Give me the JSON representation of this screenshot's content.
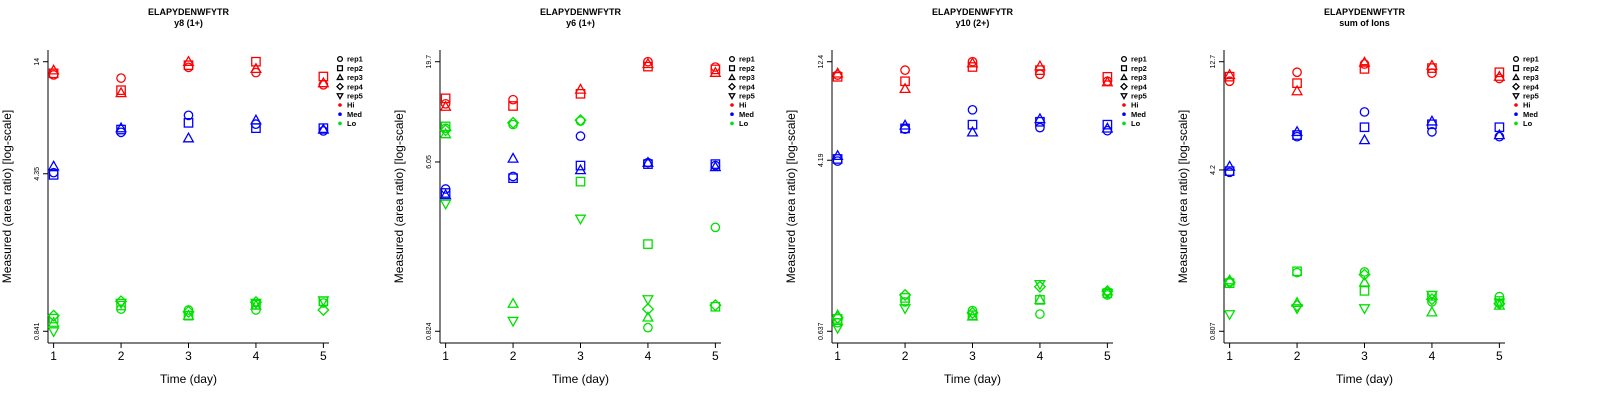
{
  "figure": {
    "legend_entries": [
      {
        "label": "rep1",
        "marker": "circle"
      },
      {
        "label": "rep2",
        "marker": "square"
      },
      {
        "label": "rep3",
        "marker": "triangle-up"
      },
      {
        "label": "rep4",
        "marker": "diamond"
      },
      {
        "label": "rep5",
        "marker": "triangle-down"
      },
      {
        "label": "Hi",
        "marker": "dot",
        "color": "#ff0000"
      },
      {
        "label": "Med",
        "marker": "dot",
        "color": "#0000ff"
      },
      {
        "label": "Lo",
        "marker": "dot",
        "color": "#00e000"
      }
    ],
    "group_colors": {
      "Hi": "#ff0000",
      "Med": "#0000ff",
      "Lo": "#00e000"
    }
  },
  "chart_data": [
    {
      "type": "scatter",
      "title": "ELAPYDENWFYTR",
      "subtitle": "y8 (1+)",
      "xlabel": "Time (day)",
      "ylabel": "Measured (area ratio) [log-scale]",
      "log_y": true,
      "x_ticks": [
        "1",
        "2",
        "3",
        "4",
        "5"
      ],
      "y_ticks": [
        "14",
        "4.35",
        "0.841"
      ],
      "ylim": [
        0.841,
        14
      ],
      "legend": "right",
      "series": [
        {
          "group": "Hi",
          "x": [
            1,
            1,
            1,
            2,
            2,
            2,
            3,
            3,
            3,
            4,
            4,
            4,
            5,
            5,
            5
          ],
          "y": [
            12.2,
            12.4,
            12.8,
            11.8,
            10.4,
            10.1,
            14.0,
            13.5,
            13.2,
            14.0,
            13.0,
            12.5,
            12.0,
            11.2,
            11.0
          ],
          "reps": [
            "rep1",
            "rep2",
            "rep3",
            "rep1",
            "rep2",
            "rep3",
            "rep3",
            "rep2",
            "rep1",
            "rep2",
            "rep3",
            "rep1",
            "rep2",
            "rep3",
            "rep1"
          ]
        },
        {
          "group": "Med",
          "x": [
            1,
            1,
            1,
            2,
            2,
            2,
            3,
            3,
            3,
            4,
            4,
            4,
            5,
            5,
            5
          ],
          "y": [
            4.4,
            4.3,
            4.7,
            6.7,
            6.9,
            7.0,
            8.0,
            7.4,
            6.3,
            7.3,
            7.6,
            7.0,
            6.8,
            7.0,
            6.9
          ],
          "reps": [
            "rep1",
            "rep2",
            "rep3",
            "rep1",
            "rep2",
            "rep3",
            "rep1",
            "rep2",
            "rep3",
            "rep1",
            "rep3",
            "rep2",
            "rep1",
            "rep2",
            "rep3"
          ]
        },
        {
          "group": "Lo",
          "x": [
            1,
            1,
            1,
            1,
            2,
            2,
            2,
            2,
            3,
            3,
            3,
            3,
            4,
            4,
            4,
            4,
            4,
            5,
            5,
            5,
            5
          ],
          "y": [
            0.96,
            0.92,
            0.99,
            0.84,
            1.15,
            1.13,
            1.1,
            1.06,
            1.05,
            1.03,
            0.99,
            0.99,
            1.05,
            1.1,
            1.14,
            1.13,
            1.11,
            1.15,
            1.13,
            1.16,
            1.05
          ],
          "reps": [
            "rep2",
            "rep3",
            "rep4",
            "rep5",
            "rep4",
            "rep5",
            "rep2",
            "rep1",
            "rep1",
            "rep4",
            "rep2",
            "rep3",
            "rep1",
            "rep3",
            "rep4",
            "rep5",
            "rep2",
            "rep2",
            "rep1",
            "rep5",
            "rep4"
          ]
        }
      ]
    },
    {
      "type": "scatter",
      "title": "ELAPYDENWFYTR",
      "subtitle": "y6 (1+)",
      "xlabel": "Time (day)",
      "ylabel": "Measured (area ratio) [log-scale]",
      "log_y": true,
      "x_ticks": [
        "1",
        "2",
        "3",
        "4",
        "5"
      ],
      "y_ticks": [
        "19.7",
        "6.05",
        "0.824"
      ],
      "ylim": [
        0.824,
        19.7
      ],
      "legend": "right",
      "series": [
        {
          "group": "Hi",
          "x": [
            1,
            1,
            1,
            2,
            2,
            3,
            3,
            4,
            4,
            4,
            5,
            5,
            5
          ],
          "y": [
            12.0,
            12.8,
            11.6,
            12.6,
            11.7,
            13.5,
            14.2,
            19.7,
            18.6,
            19.2,
            18.5,
            18.0,
            17.3
          ],
          "reps": [
            "rep1",
            "rep2",
            "rep3",
            "rep1",
            "rep2",
            "rep2",
            "rep3",
            "rep1",
            "rep2",
            "rep3",
            "rep1",
            "rep2",
            "rep3"
          ]
        },
        {
          "group": "Med",
          "x": [
            1,
            1,
            1,
            2,
            2,
            2,
            3,
            3,
            3,
            4,
            4,
            4,
            5,
            5,
            5
          ],
          "y": [
            4.4,
            4.2,
            4.1,
            5.1,
            5.0,
            6.3,
            8.2,
            5.8,
            5.5,
            6.0,
            5.9,
            6.0,
            5.8,
            5.9,
            5.7
          ],
          "reps": [
            "rep1",
            "rep2",
            "rep3",
            "rep1",
            "rep2",
            "rep3",
            "rep1",
            "rep2",
            "rep3",
            "rep1",
            "rep2",
            "rep3",
            "rep1",
            "rep2",
            "rep3"
          ]
        },
        {
          "group": "Lo",
          "x": [
            1,
            1,
            1,
            1,
            1,
            2,
            2,
            2,
            2,
            3,
            3,
            3,
            3,
            4,
            4,
            4,
            4,
            4,
            5,
            5,
            5
          ],
          "y": [
            9.0,
            9.2,
            8.4,
            8.8,
            3.7,
            9.4,
            9.6,
            1.14,
            0.93,
            9.8,
            9.9,
            4.8,
            3.1,
            2.3,
            1.2,
            1.07,
            0.97,
            0.86,
            2.8,
            1.1,
            1.12
          ],
          "reps": [
            "rep1",
            "rep2",
            "rep3",
            "rep4",
            "rep5",
            "rep1",
            "rep4",
            "rep3",
            "rep5",
            "rep1",
            "rep4",
            "rep2",
            "rep5",
            "rep2",
            "rep5",
            "rep4",
            "rep3",
            "rep1",
            "rep1",
            "rep2",
            "rep4"
          ]
        }
      ]
    },
    {
      "type": "scatter",
      "title": "ELAPYDENWFYTR",
      "subtitle": "y10 (2+)",
      "xlabel": "Time (day)",
      "ylabel": "Measured (area ratio) [log-scale]",
      "log_y": true,
      "x_ticks": [
        "1",
        "2",
        "3",
        "4",
        "5"
      ],
      "y_ticks": [
        "12.4",
        "4.19",
        "0.637"
      ],
      "ylim": [
        0.637,
        12.4
      ],
      "legend": "right",
      "series": [
        {
          "group": "Hi",
          "x": [
            1,
            1,
            1,
            2,
            2,
            2,
            3,
            3,
            3,
            4,
            4,
            4,
            5,
            5,
            5
          ],
          "y": [
            10.7,
            10.5,
            10.9,
            11.3,
            10.0,
            9.2,
            12.4,
            11.7,
            12.2,
            10.8,
            11.3,
            11.8,
            10.0,
            10.5,
            9.9
          ],
          "reps": [
            "rep1",
            "rep2",
            "rep3",
            "rep1",
            "rep2",
            "rep3",
            "rep1",
            "rep2",
            "rep3",
            "rep1",
            "rep2",
            "rep3",
            "rep1",
            "rep2",
            "rep3"
          ]
        },
        {
          "group": "Med",
          "x": [
            1,
            1,
            1,
            2,
            2,
            2,
            3,
            3,
            3,
            4,
            4,
            4,
            5,
            5,
            5
          ],
          "y": [
            4.15,
            4.25,
            4.4,
            5.9,
            5.95,
            6.15,
            7.3,
            6.2,
            5.7,
            6.0,
            6.4,
            6.6,
            5.8,
            6.2,
            5.95
          ],
          "reps": [
            "rep1",
            "rep2",
            "rep3",
            "rep1",
            "rep2",
            "rep3",
            "rep1",
            "rep2",
            "rep3",
            "rep1",
            "rep2",
            "rep3",
            "rep1",
            "rep2",
            "rep3"
          ]
        },
        {
          "group": "Lo",
          "x": [
            1,
            1,
            1,
            1,
            1,
            2,
            2,
            2,
            2,
            3,
            3,
            3,
            3,
            4,
            4,
            4,
            4,
            4,
            5,
            5,
            5,
            5,
            5
          ],
          "y": [
            0.7,
            0.73,
            0.76,
            0.74,
            0.66,
            0.88,
            0.92,
            0.95,
            0.82,
            0.8,
            0.76,
            0.75,
            0.78,
            0.77,
            1.04,
            1.07,
            0.9,
            0.9,
            0.95,
            0.97,
            0.99,
            0.99,
            0.97
          ],
          "reps": [
            "rep1",
            "rep2",
            "rep3",
            "rep4",
            "rep5",
            "rep1",
            "rep2",
            "rep4",
            "rep5",
            "rep1",
            "rep2",
            "rep3",
            "rep4",
            "rep1",
            "rep4",
            "rep5",
            "rep2",
            "rep3",
            "rep1",
            "rep2",
            "rep3",
            "rep4",
            "rep5"
          ]
        }
      ]
    },
    {
      "type": "scatter",
      "title": "ELAPYDENWFYTR",
      "subtitle": "sum of Ions",
      "xlabel": "Time (day)",
      "ylabel": "Measured (area ratio) [log-scale]",
      "log_y": true,
      "x_ticks": [
        "1",
        "2",
        "3",
        "4",
        "5"
      ],
      "y_ticks": [
        "12.7",
        "4.2",
        "0.807"
      ],
      "ylim": [
        0.807,
        12.7
      ],
      "legend": "right",
      "series": [
        {
          "group": "Hi",
          "x": [
            1,
            1,
            1,
            2,
            2,
            2,
            3,
            3,
            3,
            4,
            4,
            4,
            5,
            5,
            5
          ],
          "y": [
            10.4,
            10.9,
            11.1,
            11.4,
            10.2,
            9.4,
            12.4,
            11.8,
            12.6,
            11.3,
            11.9,
            12.2,
            10.7,
            11.4,
            10.9
          ],
          "reps": [
            "rep1",
            "rep2",
            "rep3",
            "rep1",
            "rep2",
            "rep3",
            "rep1",
            "rep2",
            "rep3",
            "rep1",
            "rep2",
            "rep3",
            "rep1",
            "rep2",
            "rep3"
          ]
        },
        {
          "group": "Med",
          "x": [
            1,
            1,
            1,
            2,
            2,
            2,
            3,
            3,
            3,
            4,
            4,
            4,
            5,
            5,
            5
          ],
          "y": [
            4.1,
            4.15,
            4.35,
            5.9,
            6.0,
            6.2,
            7.6,
            6.5,
            5.7,
            6.2,
            6.7,
            6.9,
            5.9,
            6.5,
            6.0
          ],
          "reps": [
            "rep1",
            "rep2",
            "rep3",
            "rep1",
            "rep2",
            "rep3",
            "rep1",
            "rep2",
            "rep3",
            "rep1",
            "rep2",
            "rep3",
            "rep1",
            "rep2",
            "rep3"
          ]
        },
        {
          "group": "Lo",
          "x": [
            1,
            1,
            1,
            1,
            1,
            2,
            2,
            2,
            2,
            2,
            3,
            3,
            3,
            3,
            3,
            4,
            4,
            4,
            4,
            4,
            5,
            5,
            5,
            5,
            5
          ],
          "y": [
            1.34,
            1.32,
            1.36,
            1.33,
            0.96,
            1.47,
            1.49,
            1.08,
            1.05,
            1.02,
            1.48,
            1.44,
            1.33,
            1.22,
            1.02,
            0.98,
            1.16,
            1.12,
            1.17,
            1.09,
            1.15,
            1.1,
            1.07,
            1.08,
            1.05
          ],
          "reps": [
            "rep1",
            "rep2",
            "rep3",
            "rep4",
            "rep5",
            "rep1",
            "rep2",
            "rep3",
            "rep4",
            "rep5",
            "rep1",
            "rep4",
            "rep3",
            "rep2",
            "rep5",
            "rep3",
            "rep2",
            "rep4",
            "rep5",
            "rep1",
            "rep1",
            "rep2",
            "rep4",
            "rep5",
            "rep3"
          ]
        }
      ]
    }
  ]
}
